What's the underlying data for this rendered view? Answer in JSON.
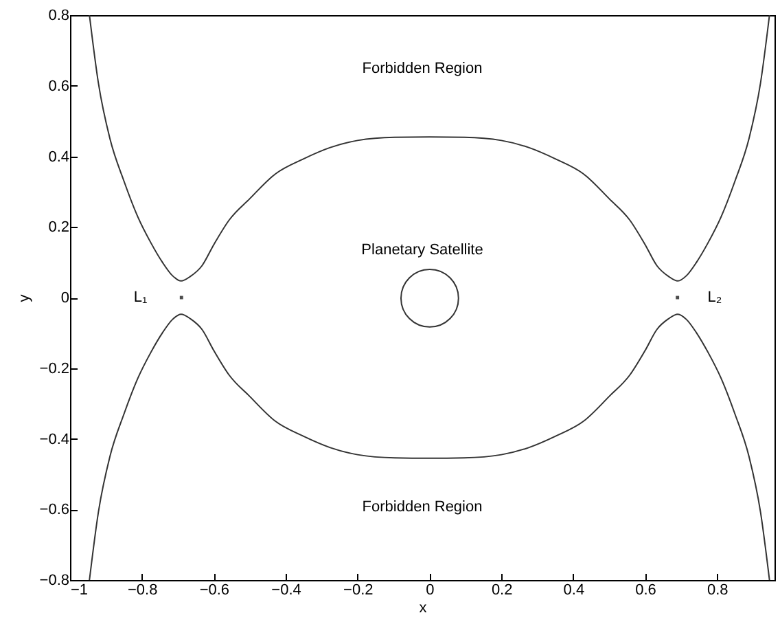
{
  "chart_data": {
    "type": "line",
    "xlabel": "x",
    "ylabel": "y",
    "xlim": [
      -1,
      0.96
    ],
    "ylim": [
      -0.8,
      0.8
    ],
    "xticks": [
      -1,
      -0.8,
      -0.6,
      -0.4,
      -0.2,
      0,
      0.2,
      0.4,
      0.6,
      0.8
    ],
    "yticks": [
      -0.8,
      -0.6,
      -0.4,
      -0.2,
      0,
      0.2,
      0.4,
      0.6,
      0.8
    ],
    "grid": false,
    "marker": "none",
    "line_style": "solid",
    "series": [
      {
        "color": "#333333",
        "x": [
          -0.946,
          -0.921,
          -0.889,
          -0.85,
          -0.812,
          -0.775,
          -0.743,
          -0.715,
          -0.691,
          -0.665,
          -0.633,
          -0.6,
          -0.557,
          -0.5,
          -0.429,
          -0.35,
          -0.276,
          -0.2,
          -0.097,
          0,
          0.097,
          0.2,
          0.276,
          0.35,
          0.429,
          0.5,
          0.557,
          0.6,
          0.633,
          0.665,
          0.691,
          0.715,
          0.743,
          0.775,
          0.812,
          0.85,
          0.889,
          0.921,
          0.946
        ],
        "values": [
          0.8,
          0.607,
          0.45,
          0.33,
          0.23,
          0.155,
          0.1,
          0.062,
          0.047,
          0.06,
          0.09,
          0.15,
          0.22,
          0.28,
          0.35,
          0.393,
          0.425,
          0.445,
          0.454,
          0.455,
          0.454,
          0.445,
          0.425,
          0.393,
          0.35,
          0.28,
          0.22,
          0.15,
          0.09,
          0.06,
          0.047,
          0.062,
          0.1,
          0.155,
          0.23,
          0.33,
          0.45,
          0.607,
          0.8
        ]
      },
      {
        "color": "#333333",
        "x": [
          -0.946,
          -0.921,
          -0.889,
          -0.85,
          -0.812,
          -0.775,
          -0.743,
          -0.715,
          -0.691,
          -0.665,
          -0.633,
          -0.6,
          -0.557,
          -0.5,
          -0.429,
          -0.35,
          -0.276,
          -0.2,
          -0.097,
          0,
          0.097,
          0.2,
          0.276,
          0.35,
          0.429,
          0.5,
          0.557,
          0.6,
          0.633,
          0.665,
          0.691,
          0.715,
          0.743,
          0.775,
          0.812,
          0.85,
          0.889,
          0.921,
          0.946
        ],
        "values": [
          -0.8,
          -0.607,
          -0.45,
          -0.33,
          -0.23,
          -0.155,
          -0.1,
          -0.062,
          -0.047,
          -0.06,
          -0.09,
          -0.15,
          -0.22,
          -0.28,
          -0.35,
          -0.393,
          -0.425,
          -0.445,
          -0.454,
          -0.455,
          -0.454,
          -0.445,
          -0.425,
          -0.393,
          -0.35,
          -0.28,
          -0.22,
          -0.15,
          -0.09,
          -0.06,
          -0.047,
          -0.062,
          -0.1,
          -0.155,
          -0.23,
          -0.33,
          -0.45,
          -0.607,
          -0.8
        ]
      },
      {
        "type": "scatter",
        "color": "#000000",
        "marker": "square",
        "x": [
          -0.69,
          0.69
        ],
        "values": [
          0,
          0
        ]
      }
    ],
    "annotations": [
      "Forbidden Region",
      "Planetary Satellite",
      "Forbidden Region",
      "L₁",
      "L₂"
    ]
  }
}
